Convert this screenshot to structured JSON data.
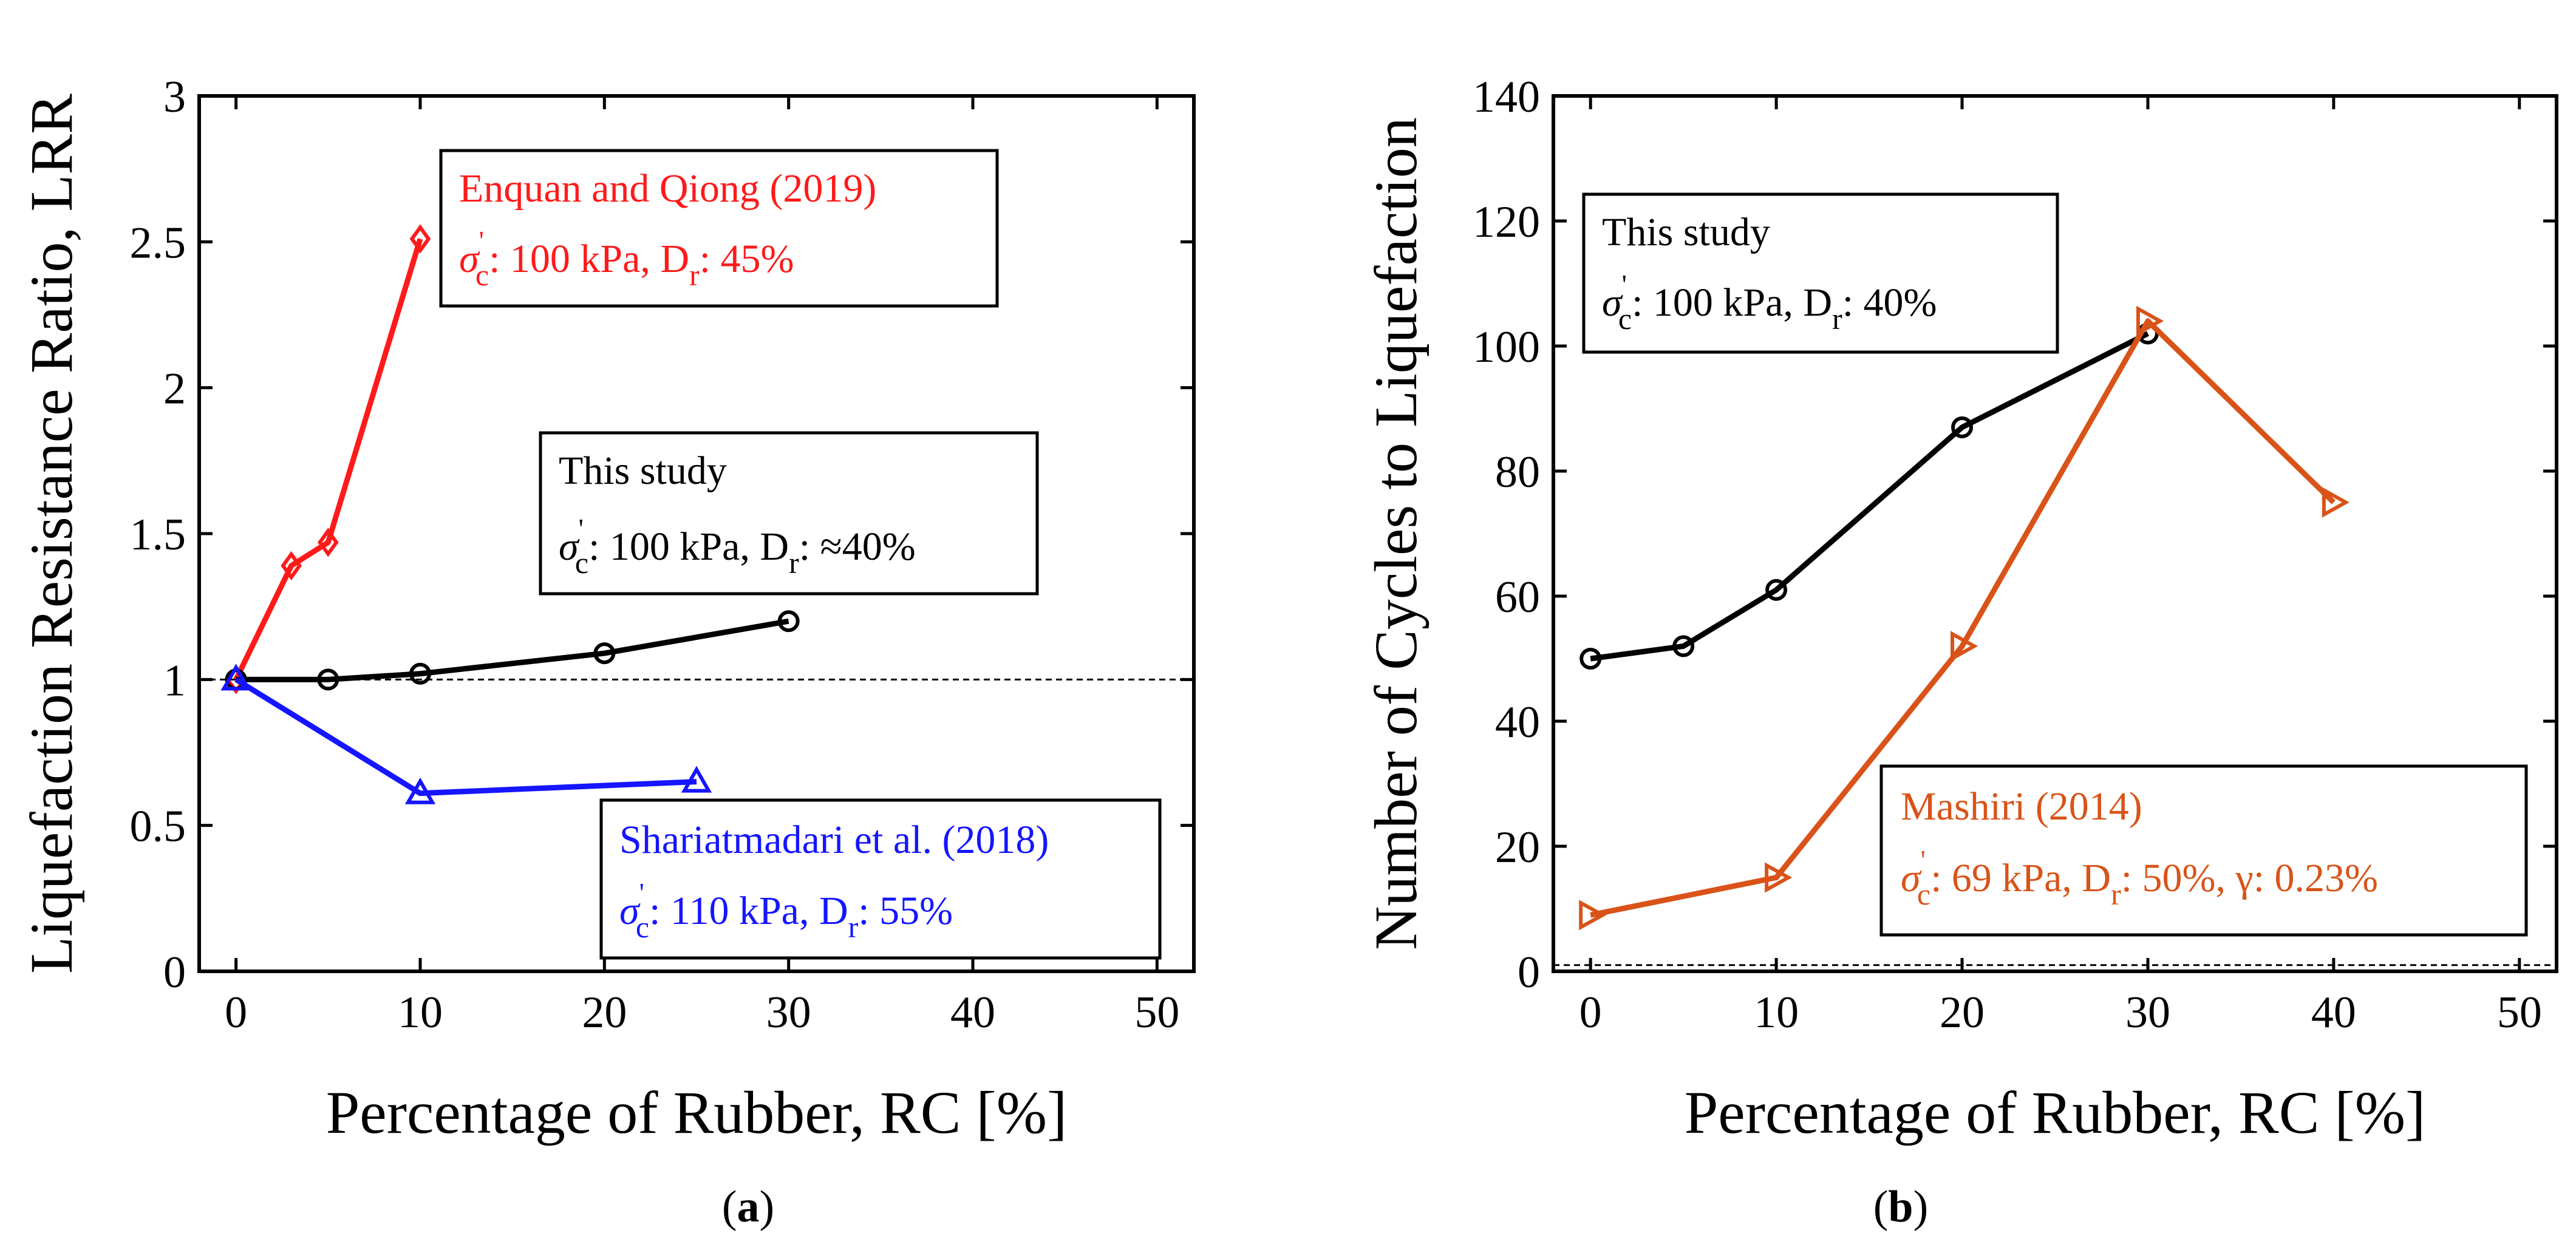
{
  "colors": {
    "black": "#000000",
    "red": "#ff1a1a",
    "blue": "#1515ff",
    "orange": "#d95319"
  },
  "captions": {
    "a_open": "(",
    "a_letter": "a",
    "a_close": ")",
    "b_open": "(",
    "b_letter": "b",
    "b_close": ")"
  },
  "chart_data": [
    {
      "type": "line",
      "panel": "a",
      "xlabel": "Percentage of Rubber, RC [%]",
      "ylabel": "Liquefaction Resistance Ratio, LRR",
      "xlim": [
        -2,
        52
      ],
      "ylim": [
        0,
        3
      ],
      "xticks": [
        "0",
        "10",
        "20",
        "30",
        "40",
        "50"
      ],
      "yticks": [
        "0",
        "0.5",
        "1",
        "1.5",
        "2",
        "2.5",
        "3"
      ],
      "reference_line": {
        "y": 1,
        "style": "dashed"
      },
      "series": [
        {
          "name": "Enquan and  Qiong (2019)",
          "color": "#ff1a1a",
          "marker": "diamond",
          "x": [
            0,
            3,
            5,
            10
          ],
          "y": [
            1.0,
            1.39,
            1.47,
            2.51
          ]
        },
        {
          "name": "This study",
          "color": "#000000",
          "marker": "circle",
          "x": [
            0,
            5,
            10,
            20,
            30
          ],
          "y": [
            1.0,
            1.0,
            1.02,
            1.09,
            1.2
          ]
        },
        {
          "name": "Shariatmadari et al. (2018)",
          "color": "#1515ff",
          "marker": "triangle-up",
          "x": [
            0,
            10,
            25
          ],
          "y": [
            1.0,
            0.61,
            0.65
          ]
        }
      ],
      "annotations": [
        {
          "title": "Enquan and  Qiong (2019)",
          "pre": ": 100 kPa, D",
          "post": ": 45%",
          "color": "#ff1a1a"
        },
        {
          "title": "This study",
          "pre": ": 100 kPa, D",
          "post": ": ≈40%",
          "color": "#000000"
        },
        {
          "title": "Shariatmadari et al. (2018)",
          "pre": ": 110 kPa, D",
          "post": ": 55%",
          "color": "#1515ff"
        }
      ]
    },
    {
      "type": "line",
      "panel": "b",
      "xlabel": "Percentage of Rubber, RC [%]",
      "ylabel": "Number of Cycles to Liquefaction",
      "xlim": [
        -2,
        52
      ],
      "ylim": [
        0,
        140
      ],
      "xticks": [
        "0",
        "10",
        "20",
        "30",
        "40",
        "50"
      ],
      "yticks": [
        "0",
        "20",
        "40",
        "60",
        "80",
        "100",
        "120",
        "140"
      ],
      "reference_line": {
        "y": 1,
        "style": "dashed"
      },
      "series": [
        {
          "name": "This study",
          "color": "#000000",
          "marker": "circle",
          "x": [
            0,
            5,
            10,
            20,
            30
          ],
          "y": [
            50,
            52,
            61,
            87,
            102
          ]
        },
        {
          "name": "Mashiri (2014)",
          "color": "#d95319",
          "marker": "triangle-right",
          "x": [
            0,
            10,
            20,
            30,
            40
          ],
          "y": [
            9,
            15,
            52,
            104,
            75
          ]
        }
      ],
      "annotations": [
        {
          "title": "This study",
          "pre": ": 100 kPa, D",
          "post": ": 40%",
          "color": "#000000"
        },
        {
          "title": "Mashiri (2014)",
          "pre": ": 69 kPa, D",
          "post": ": 50%, γ: 0.23%",
          "color": "#d95319"
        }
      ]
    }
  ]
}
